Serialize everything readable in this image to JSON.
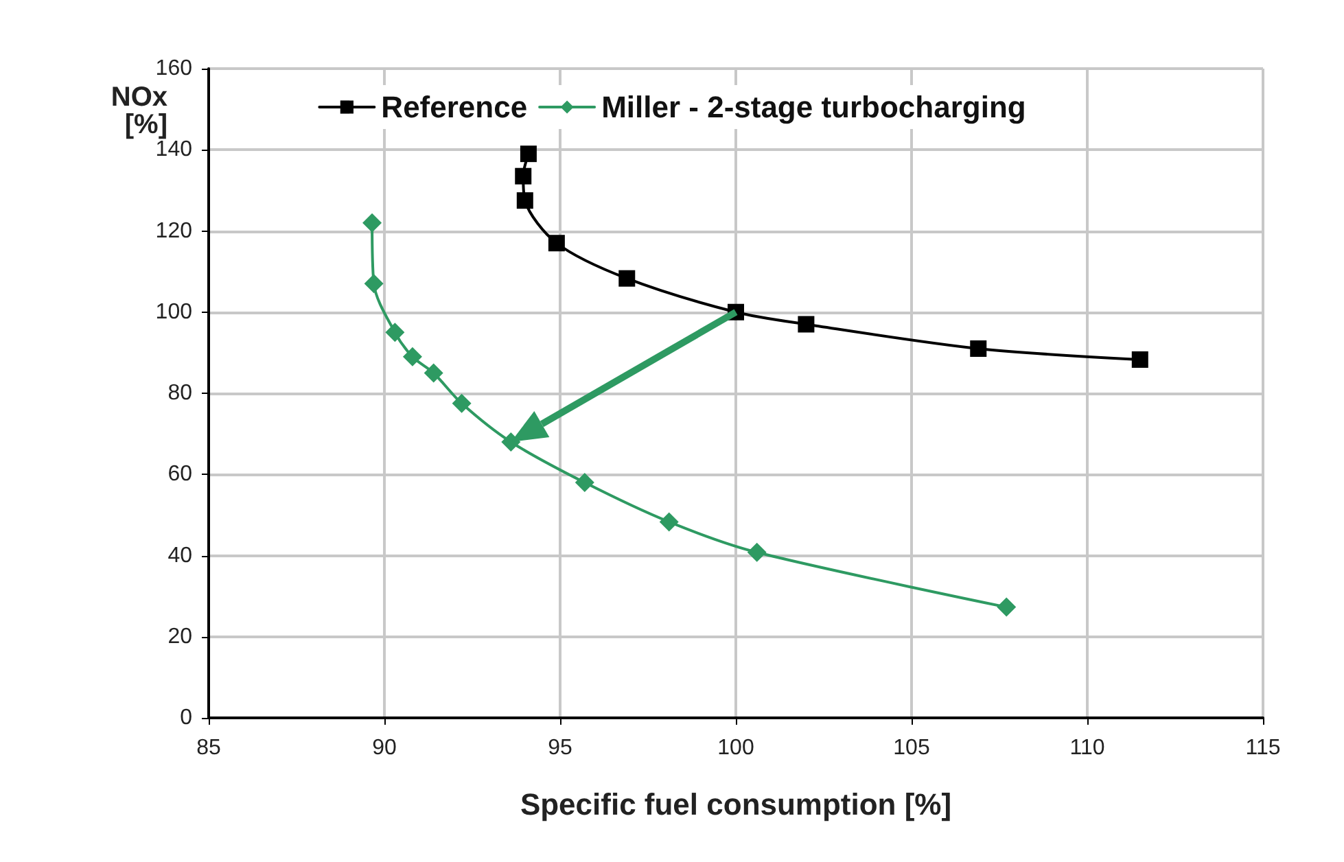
{
  "chart_data": {
    "type": "line",
    "xlabel": "Specific fuel consumption [%]",
    "ylabel": "NOx\n[%]",
    "xlim": [
      85,
      115
    ],
    "xticks": [
      85,
      90,
      95,
      100,
      105,
      110,
      115
    ],
    "ylim": [
      0,
      160
    ],
    "yticks": [
      0,
      20,
      40,
      60,
      80,
      100,
      120,
      140,
      160
    ],
    "grid": true,
    "legend": "top",
    "line_style": "solid",
    "series": [
      {
        "name": "Reference",
        "color": "#000000",
        "marker": "square",
        "x": [
          94.1,
          93.95,
          94.0,
          94.9,
          96.9,
          100.0,
          102.0,
          106.9,
          111.5
        ],
        "values": [
          139,
          133.5,
          127.5,
          117,
          108.3,
          100,
          97,
          91,
          88.3
        ]
      },
      {
        "name": "Miller - 2-stage turbocharging",
        "color": "#2e9a62",
        "marker": "diamond",
        "x": [
          89.65,
          89.7,
          90.3,
          90.8,
          91.4,
          92.2,
          93.6,
          95.7,
          98.1,
          100.6,
          107.7
        ],
        "values": [
          122,
          107,
          95,
          89,
          85,
          77.5,
          68,
          58,
          48.3,
          40.8,
          27.3
        ]
      }
    ]
  }
}
